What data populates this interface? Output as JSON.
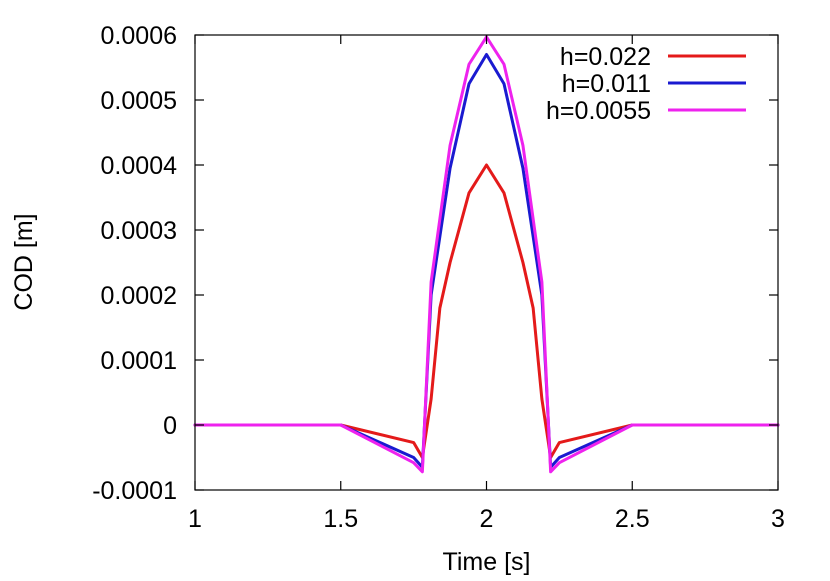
{
  "chart_data": {
    "type": "line",
    "title": "",
    "xlabel": "Time [s]",
    "ylabel": "COD [m]",
    "xlim": [
      1,
      3
    ],
    "ylim": [
      -0.0001,
      0.0006
    ],
    "x_ticks": [
      1,
      1.5,
      2,
      2.5,
      3
    ],
    "y_ticks": [
      -0.0001,
      0,
      0.0001,
      0.0002,
      0.0003,
      0.0004,
      0.0005,
      0.0006
    ],
    "x_tick_labels": [
      "1",
      "1.5",
      "2",
      "2.5",
      "3"
    ],
    "y_tick_labels": [
      "-0.0001",
      "0",
      "0.0001",
      "0.0002",
      "0.0003",
      "0.0004",
      "0.0005",
      "0.0006"
    ],
    "grid": false,
    "legend_position": "top-right",
    "series": [
      {
        "name": "h=0.022",
        "color": "#e41a1a",
        "points": [
          [
            1.0,
            0
          ],
          [
            1.5,
            0
          ],
          [
            1.75,
            -2.7e-05
          ],
          [
            1.78,
            -5e-05
          ],
          [
            1.81,
            4e-05
          ],
          [
            1.84,
            0.00018
          ],
          [
            1.875,
            0.00025
          ],
          [
            1.94,
            0.000357
          ],
          [
            2.0,
            0.0004
          ],
          [
            2.06,
            0.000357
          ],
          [
            2.125,
            0.00025
          ],
          [
            2.16,
            0.00018
          ],
          [
            2.19,
            4e-05
          ],
          [
            2.22,
            -5e-05
          ],
          [
            2.25,
            -2.7e-05
          ],
          [
            2.5,
            0
          ],
          [
            3.0,
            0
          ]
        ]
      },
      {
        "name": "h=0.011",
        "color": "#1a1ad0",
        "points": [
          [
            1.0,
            0
          ],
          [
            1.5,
            0
          ],
          [
            1.75,
            -5e-05
          ],
          [
            1.78,
            -6.5e-05
          ],
          [
            1.81,
            0.0002
          ],
          [
            1.875,
            0.000395
          ],
          [
            1.94,
            0.000525
          ],
          [
            2.0,
            0.00057
          ],
          [
            2.06,
            0.000525
          ],
          [
            2.125,
            0.000395
          ],
          [
            2.19,
            0.0002
          ],
          [
            2.22,
            -6.5e-05
          ],
          [
            2.25,
            -5e-05
          ],
          [
            2.5,
            0
          ],
          [
            3.0,
            0
          ]
        ]
      },
      {
        "name": "h=0.0055",
        "color": "#ee22ee",
        "points": [
          [
            1.0,
            0
          ],
          [
            1.5,
            0
          ],
          [
            1.75,
            -5.8e-05
          ],
          [
            1.78,
            -7.2e-05
          ],
          [
            1.81,
            0.00022
          ],
          [
            1.875,
            0.00043
          ],
          [
            1.94,
            0.000555
          ],
          [
            2.0,
            0.000597
          ],
          [
            2.06,
            0.000555
          ],
          [
            2.125,
            0.00043
          ],
          [
            2.19,
            0.00022
          ],
          [
            2.22,
            -7.2e-05
          ],
          [
            2.25,
            -5.8e-05
          ],
          [
            2.5,
            0
          ],
          [
            3.0,
            0
          ]
        ]
      }
    ]
  }
}
